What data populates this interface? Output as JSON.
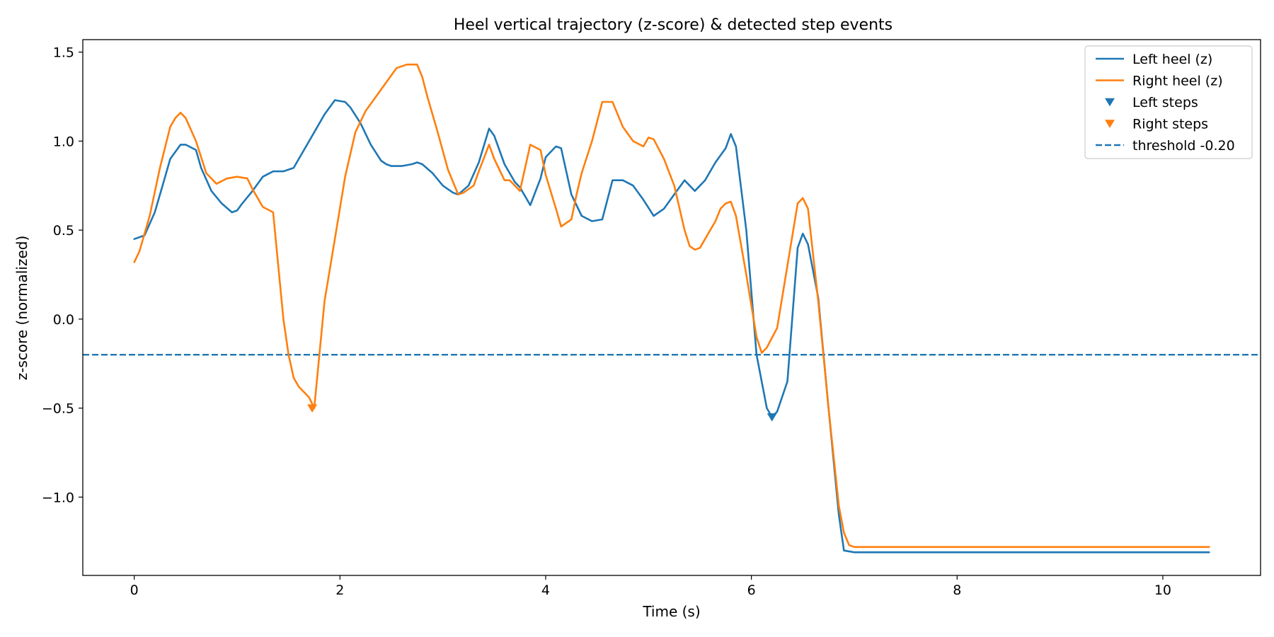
{
  "chart_data": {
    "type": "line",
    "title": "Heel vertical trajectory (z-score) & detected step events",
    "xlabel": "Time (s)",
    "ylabel": "z-score (normalized)",
    "xlim": [
      -0.5,
      10.95
    ],
    "ylim": [
      -1.44,
      1.57
    ],
    "xticks": [
      0,
      2,
      4,
      6,
      8,
      10
    ],
    "xtick_labels": [
      "0",
      "2",
      "4",
      "6",
      "8",
      "10"
    ],
    "yticks": [
      1.5,
      1.0,
      0.5,
      0.0,
      -0.5,
      -1.0
    ],
    "ytick_labels": [
      "1.5",
      "1.0",
      "0.5",
      "0.0",
      "−0.5",
      "−1.0"
    ],
    "grid": false,
    "legend_position": "top-right",
    "series": [
      {
        "name": "Left heel (z)",
        "color": "#1f77b4",
        "x": [
          0,
          0.1,
          0.2,
          0.3,
          0.35,
          0.45,
          0.5,
          0.6,
          0.65,
          0.75,
          0.85,
          0.95,
          1.0,
          1.05,
          1.15,
          1.25,
          1.35,
          1.45,
          1.55,
          1.65,
          1.75,
          1.85,
          1.95,
          2.05,
          2.1,
          2.2,
          2.3,
          2.4,
          2.45,
          2.5,
          2.6,
          2.7,
          2.75,
          2.8,
          2.9,
          3.0,
          3.1,
          3.15,
          3.25,
          3.35,
          3.45,
          3.5,
          3.6,
          3.7,
          3.75,
          3.85,
          3.95,
          4.0,
          4.1,
          4.15,
          4.25,
          4.35,
          4.45,
          4.55,
          4.65,
          4.75,
          4.85,
          4.95,
          5.05,
          5.15,
          5.25,
          5.35,
          5.45,
          5.55,
          5.65,
          5.75,
          5.8,
          5.85,
          5.95,
          6.05,
          6.15,
          6.2,
          6.25,
          6.35,
          6.45,
          6.5,
          6.55,
          6.65,
          6.75,
          6.85,
          6.9,
          7.0,
          8.0,
          9.0,
          10.0,
          10.45
        ],
        "y": [
          0.45,
          0.47,
          0.6,
          0.8,
          0.9,
          0.98,
          0.98,
          0.95,
          0.85,
          0.72,
          0.65,
          0.6,
          0.61,
          0.65,
          0.72,
          0.8,
          0.83,
          0.83,
          0.85,
          0.95,
          1.05,
          1.15,
          1.23,
          1.22,
          1.19,
          1.1,
          0.98,
          0.89,
          0.87,
          0.86,
          0.86,
          0.87,
          0.88,
          0.87,
          0.82,
          0.75,
          0.71,
          0.7,
          0.75,
          0.88,
          1.07,
          1.03,
          0.87,
          0.77,
          0.74,
          0.64,
          0.79,
          0.91,
          0.97,
          0.96,
          0.7,
          0.58,
          0.55,
          0.56,
          0.78,
          0.78,
          0.75,
          0.67,
          0.58,
          0.62,
          0.7,
          0.78,
          0.72,
          0.78,
          0.88,
          0.96,
          1.04,
          0.97,
          0.5,
          -0.2,
          -0.5,
          -0.55,
          -0.52,
          -0.35,
          0.4,
          0.48,
          0.42,
          0.12,
          -0.5,
          -1.1,
          -1.3,
          -1.31,
          -1.31,
          -1.31,
          -1.31,
          -1.31
        ]
      },
      {
        "name": "Right heel (z)",
        "color": "#ff7f0e",
        "x": [
          0,
          0.05,
          0.15,
          0.25,
          0.35,
          0.4,
          0.45,
          0.5,
          0.6,
          0.7,
          0.8,
          0.9,
          1.0,
          1.1,
          1.15,
          1.25,
          1.35,
          1.45,
          1.5,
          1.55,
          1.6,
          1.7,
          1.75,
          1.85,
          1.95,
          2.05,
          2.15,
          2.25,
          2.35,
          2.45,
          2.55,
          2.65,
          2.75,
          2.8,
          2.85,
          2.95,
          3.05,
          3.15,
          3.2,
          3.3,
          3.35,
          3.45,
          3.5,
          3.6,
          3.65,
          3.75,
          3.85,
          3.95,
          4.0,
          4.1,
          4.15,
          4.25,
          4.3,
          4.35,
          4.45,
          4.55,
          4.65,
          4.7,
          4.75,
          4.85,
          4.95,
          5.0,
          5.05,
          5.15,
          5.25,
          5.35,
          5.4,
          5.45,
          5.5,
          5.55,
          5.65,
          5.7,
          5.75,
          5.8,
          5.85,
          5.95,
          6.05,
          6.1,
          6.15,
          6.25,
          6.35,
          6.45,
          6.5,
          6.55,
          6.65,
          6.75,
          6.85,
          6.9,
          6.95,
          7.0,
          8.0,
          9.0,
          10.0,
          10.45
        ],
        "y": [
          0.32,
          0.38,
          0.58,
          0.85,
          1.08,
          1.13,
          1.16,
          1.13,
          1.0,
          0.82,
          0.76,
          0.79,
          0.8,
          0.79,
          0.73,
          0.63,
          0.6,
          0.0,
          -0.2,
          -0.33,
          -0.38,
          -0.44,
          -0.5,
          0.1,
          0.45,
          0.8,
          1.05,
          1.17,
          1.25,
          1.33,
          1.41,
          1.43,
          1.43,
          1.36,
          1.25,
          1.05,
          0.84,
          0.7,
          0.71,
          0.75,
          0.83,
          0.98,
          0.9,
          0.78,
          0.78,
          0.72,
          0.98,
          0.95,
          0.81,
          0.62,
          0.52,
          0.56,
          0.7,
          0.82,
          1.0,
          1.22,
          1.22,
          1.15,
          1.08,
          1.0,
          0.97,
          1.02,
          1.01,
          0.9,
          0.75,
          0.5,
          0.41,
          0.39,
          0.4,
          0.45,
          0.55,
          0.62,
          0.65,
          0.66,
          0.58,
          0.25,
          -0.1,
          -0.19,
          -0.16,
          -0.05,
          0.3,
          0.65,
          0.68,
          0.62,
          0.1,
          -0.5,
          -1.05,
          -1.2,
          -1.27,
          -1.28,
          -1.28,
          -1.28,
          -1.28,
          -1.28
        ]
      }
    ],
    "markers": [
      {
        "name": "Left steps",
        "color": "#1f77b4",
        "symbol": "triangle-down",
        "x": [
          6.2
        ],
        "y": [
          -0.55
        ]
      },
      {
        "name": "Right steps",
        "color": "#ff7f0e",
        "symbol": "triangle-down",
        "x": [
          1.73
        ],
        "y": [
          -0.5
        ]
      }
    ],
    "hline": {
      "name": "threshold -0.20",
      "y": -0.2,
      "color": "#1f77b4",
      "style": "dashed"
    }
  }
}
